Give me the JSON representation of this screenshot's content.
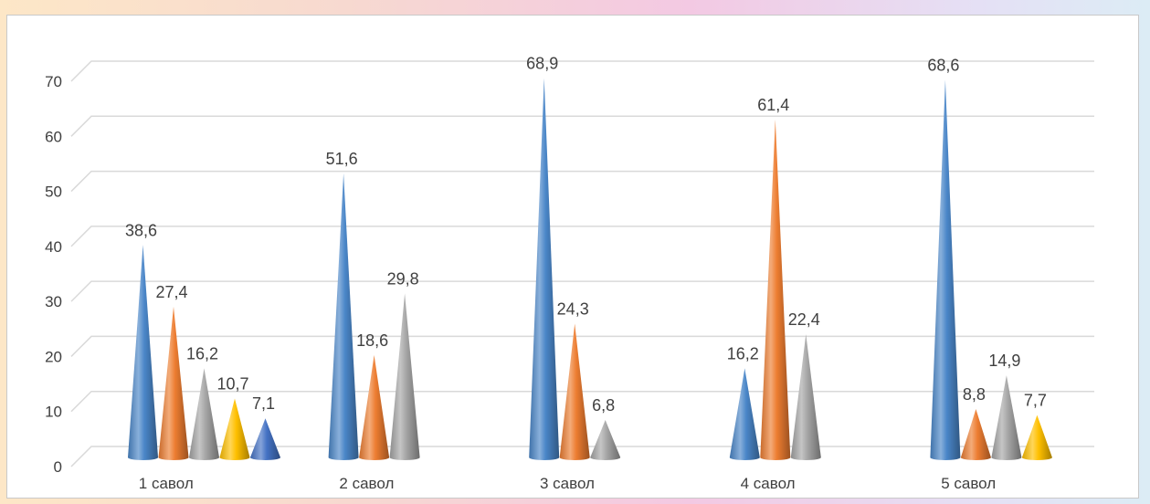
{
  "chart_data": {
    "type": "bar",
    "bar_shape": "cone",
    "categories": [
      "1 савол",
      "2 савол",
      "3 савол",
      "4 савол",
      "5 савол"
    ],
    "ylim": [
      0,
      70
    ],
    "yticks": [
      "0",
      "10",
      "20",
      "30",
      "40",
      "50",
      "60",
      "70"
    ],
    "grid": true,
    "legend": "none",
    "series_values": [
      [
        38.6,
        27.4,
        16.2,
        10.7,
        7.1
      ],
      [
        51.6,
        18.6,
        29.8
      ],
      [
        68.9,
        24.3,
        6.8
      ],
      [
        16.2,
        61.4,
        22.4
      ],
      [
        68.6,
        8.8,
        14.9,
        7.7
      ]
    ],
    "labels": [
      [
        "38,6",
        "27,4",
        "16,2",
        "10,7",
        "7,1"
      ],
      [
        "51,6",
        "18,6",
        "29,8"
      ],
      [
        "68,9",
        "24,3",
        "6,8"
      ],
      [
        "16,2",
        "61,4",
        "22,4"
      ],
      [
        "68,6",
        "8,8",
        "14,9",
        "7,7"
      ]
    ],
    "colors": [
      "#4a86c8",
      "#ed7d31",
      "#a5a5a5",
      "#ffc000",
      "#4472c4"
    ]
  }
}
